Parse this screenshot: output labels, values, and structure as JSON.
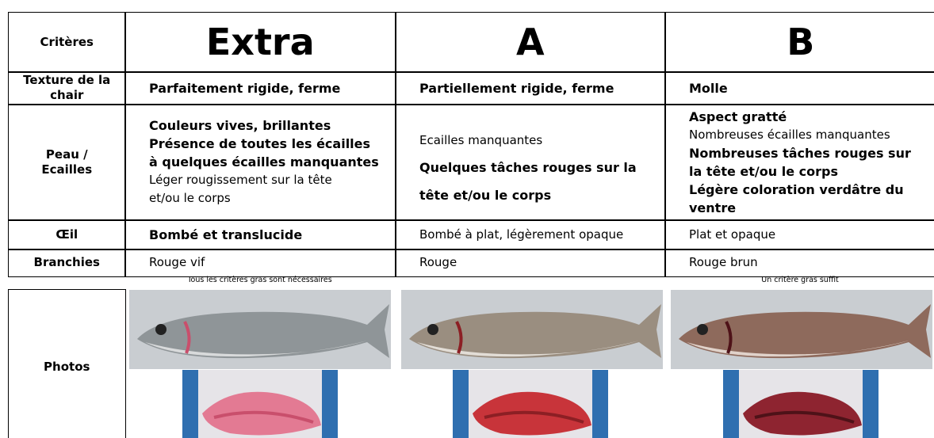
{
  "header": {
    "label": "Critères",
    "columns": [
      "Extra",
      "A",
      "B"
    ]
  },
  "rows": [
    {
      "label": [
        "Texture de la",
        "chair"
      ],
      "cells": [
        [
          {
            "text": "Parfaitement rigide, ferme",
            "bold": true
          }
        ],
        [
          {
            "text": "Partiellement rigide, ferme",
            "bold": true
          }
        ],
        [
          {
            "text": "Molle",
            "bold": true
          }
        ]
      ]
    },
    {
      "label": [
        "Peau /",
        "Ecailles"
      ],
      "cells": [
        [
          {
            "text": "Couleurs vives, brillantes",
            "bold": true
          },
          {
            "text": "Présence de toutes les écailles",
            "bold": true
          },
          {
            "text": "à quelques écailles manquantes",
            "bold": true
          },
          {
            "text": "Léger rougissement sur la tête",
            "bold": false
          },
          {
            "text": "et/ou le corps",
            "bold": false
          }
        ],
        [
          {
            "text": "Ecailles manquantes",
            "bold": false
          },
          {
            "text": "Quelques tâches rouges sur la",
            "bold": true
          },
          {
            "text": "tête et/ou le corps",
            "bold": true
          }
        ],
        [
          {
            "text": "Aspect gratté",
            "bold": true
          },
          {
            "text": "Nombreuses écailles manquantes",
            "bold": false
          },
          {
            "text": "Nombreuses tâches rouges  sur",
            "bold": true
          },
          {
            "text": "la tête et/ou le corps",
            "bold": true
          },
          {
            "text": "Légère coloration verdâtre du",
            "bold": true
          },
          {
            "text": "ventre",
            "bold": true
          }
        ]
      ]
    },
    {
      "label": [
        "Œil"
      ],
      "cells": [
        [
          {
            "text": "Bombé et translucide",
            "bold": true
          }
        ],
        [
          {
            "text": "Bombé à plat, légèrement opaque",
            "bold": false
          }
        ],
        [
          {
            "text": "Plat et opaque",
            "bold": false
          }
        ]
      ]
    },
    {
      "label": [
        "Branchies"
      ],
      "cells": [
        [
          {
            "text": "Rouge vif",
            "bold": false
          }
        ],
        [
          {
            "text": "Rouge",
            "bold": false
          }
        ],
        [
          {
            "text": "Rouge brun",
            "bold": false
          }
        ]
      ]
    }
  ],
  "notes": [
    "Tous les critères gras sont nécessaires",
    "Un critère gras suffit"
  ],
  "photos_label": "Photos"
}
